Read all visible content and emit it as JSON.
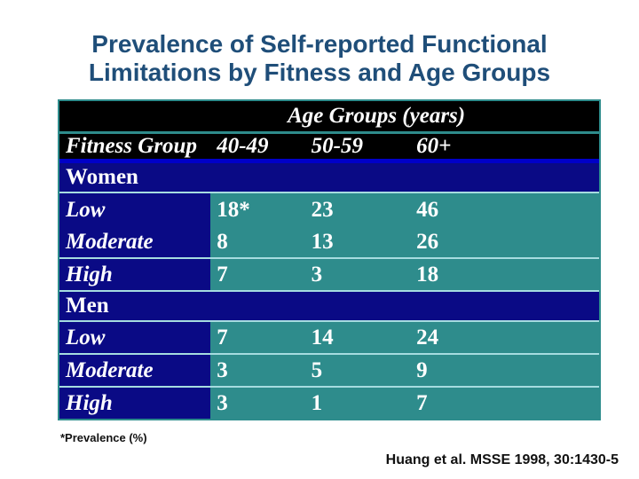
{
  "colors": {
    "title": "#1F4E79",
    "navy": "#0A0A85",
    "teal": "#2E8C8C",
    "header-black": "#000000",
    "sep-light": "#A6DCE0",
    "sep-blue": "#0000C8",
    "table-border": "#2E8C8C",
    "text-white": "#FFFFFF",
    "footnote-text": "#111111"
  },
  "slide": {
    "title_line1": "Prevalence of Self-reported Functional",
    "title_line2": "Limitations by Fitness and Age Groups",
    "footnote": "*Prevalence (%)",
    "citation": "Huang et al. MSSE 1998, 30:1430-5"
  },
  "chart_data": {
    "type": "table",
    "title": "Prevalence of Self-reported Functional Limitations by Fitness and Age Groups",
    "unit": "% prevalence",
    "column_group_header": "Age Groups (years)",
    "columns": [
      "Fitness Group",
      "40-49",
      "50-59",
      "60+"
    ],
    "sections": [
      {
        "group": "Women",
        "rows": [
          {
            "label": "Low",
            "values": [
              "18*",
              "23",
              "46"
            ]
          },
          {
            "label": "Moderate",
            "values": [
              "8",
              "13",
              "26"
            ]
          },
          {
            "label": "High",
            "values": [
              "7",
              "3",
              "18"
            ]
          }
        ]
      },
      {
        "group": "Men",
        "rows": [
          {
            "label": "Low",
            "values": [
              "7",
              "14",
              "24"
            ]
          },
          {
            "label": "Moderate",
            "values": [
              "3",
              "5",
              "9"
            ]
          },
          {
            "label": "High",
            "values": [
              "3",
              "1",
              "7"
            ]
          }
        ]
      }
    ]
  }
}
